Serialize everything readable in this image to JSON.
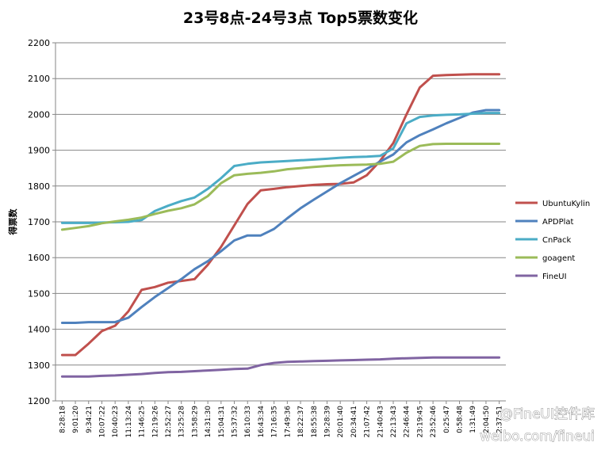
{
  "chart_data": {
    "type": "line",
    "title": "23号8点-24号3点  Top5票数变化",
    "xlabel": "",
    "ylabel": "得票数",
    "ylim": [
      1200,
      2200
    ],
    "yticks": [
      1200,
      1300,
      1400,
      1500,
      1600,
      1700,
      1800,
      1900,
      2000,
      2100,
      2200
    ],
    "grid": true,
    "legend_position": "right",
    "x": [
      "8:28:18",
      "9:01:20",
      "9:34:21",
      "10:07:22",
      "10:40:23",
      "11:13:24",
      "11:46:25",
      "12:19:26",
      "12:52:27",
      "13:25:28",
      "13:58:29",
      "14:31:30",
      "15:04:31",
      "15:37:32",
      "16:10:33",
      "16:43:34",
      "17:16:35",
      "17:49:36",
      "18:22:37",
      "18:55:38",
      "19:28:39",
      "20:01:40",
      "20:34:41",
      "21:07:42",
      "21:40:43",
      "22:13:43",
      "22:46:44",
      "23:19:45",
      "23:52:46",
      "0:25:47",
      "0:58:48",
      "1:31:49",
      "2:04:50",
      "2:37:51"
    ],
    "series": [
      {
        "name": "UbuntuKylin",
        "color": "#C0504D",
        "values": [
          1328,
          1328,
          1360,
          1395,
          1410,
          1450,
          1510,
          1518,
          1530,
          1535,
          1540,
          1580,
          1630,
          1690,
          1750,
          1788,
          1792,
          1797,
          1800,
          1803,
          1805,
          1806,
          1810,
          1830,
          1870,
          1920,
          2000,
          2075,
          2108,
          2110,
          2111,
          2112,
          2112,
          2112
        ]
      },
      {
        "name": "APDPlat",
        "color": "#4F81BD",
        "values": [
          1418,
          1418,
          1420,
          1420,
          1420,
          1432,
          1462,
          1490,
          1515,
          1540,
          1568,
          1590,
          1618,
          1648,
          1662,
          1662,
          1680,
          1710,
          1738,
          1762,
          1785,
          1808,
          1828,
          1848,
          1868,
          1888,
          1922,
          1942,
          1958,
          1975,
          1990,
          2005,
          2012,
          2012
        ]
      },
      {
        "name": "CnPack",
        "color": "#4BACC6",
        "values": [
          1697,
          1697,
          1697,
          1698,
          1699,
          1700,
          1705,
          1730,
          1745,
          1758,
          1768,
          1792,
          1822,
          1856,
          1862,
          1866,
          1868,
          1870,
          1872,
          1874,
          1876,
          1879,
          1881,
          1882,
          1884,
          1905,
          1975,
          1993,
          1997,
          1999,
          2000,
          2002,
          2004,
          2004
        ]
      },
      {
        "name": "goagent",
        "color": "#9BBB59",
        "values": [
          1678,
          1683,
          1688,
          1696,
          1701,
          1706,
          1712,
          1722,
          1731,
          1738,
          1749,
          1772,
          1808,
          1830,
          1834,
          1837,
          1841,
          1847,
          1850,
          1853,
          1856,
          1858,
          1859,
          1860,
          1862,
          1868,
          1893,
          1912,
          1917,
          1918,
          1918,
          1918,
          1918,
          1918
        ]
      },
      {
        "name": "FineUI",
        "color": "#8064A2",
        "values": [
          1268,
          1268,
          1268,
          1270,
          1271,
          1273,
          1275,
          1278,
          1280,
          1281,
          1283,
          1285,
          1287,
          1289,
          1290,
          1300,
          1306,
          1309,
          1310,
          1311,
          1312,
          1313,
          1314,
          1315,
          1316,
          1318,
          1319,
          1320,
          1321,
          1321,
          1321,
          1321,
          1321,
          1321
        ]
      }
    ]
  },
  "watermark": {
    "line1": "@FineUI控件库",
    "line2": "weibo.com/fineui"
  }
}
